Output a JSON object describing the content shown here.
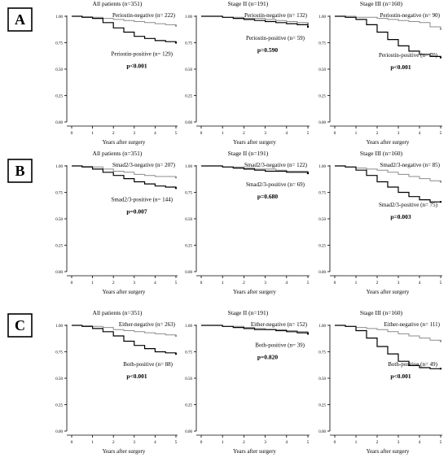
{
  "figure": {
    "rows": [
      {
        "label": "A",
        "panels": [
          {
            "title": "All patients (n=351)",
            "xlabel": "Years after surgery",
            "pvalue": "p<0.001",
            "upper_label": "Periostin-negative (n= 222)",
            "lower_label": "Periostin-positive (n= 129)"
          },
          {
            "title": "Stage II (n=191)",
            "xlabel": "Years after surgery",
            "pvalue": "p=0.590",
            "upper_label": "Periostin-negative (n= 132)",
            "lower_label": "Periostin-positive (n= 59)"
          },
          {
            "title": "Stage III (n=160)",
            "xlabel": "Years after surgery",
            "pvalue": "p<0.001",
            "upper_label": "Periostin-negative (n= 90)",
            "lower_label": "Periostin-positive (n= 70)"
          }
        ]
      },
      {
        "label": "B",
        "panels": [
          {
            "title": "All patients (n=351)",
            "xlabel": "Years after surgery",
            "pvalue": "p=0.007",
            "upper_label": "Smad2/3-negative (n= 207)",
            "lower_label": "Smad2/3-positive (n= 144)"
          },
          {
            "title": "Stage II (n=191)",
            "xlabel": "Years after surgery",
            "pvalue": "p=0.680",
            "upper_label": "Smad2/3-negative (n= 122)",
            "lower_label": "Smad2/3-positive (n= 69)"
          },
          {
            "title": "Stage III (n=160)",
            "xlabel": "Years after surgery",
            "pvalue": "p=0.003",
            "upper_label": "Smad2/3-negative (n= 85)",
            "lower_label": "Smad2/3-positive (n= 75)"
          }
        ]
      },
      {
        "label": "C",
        "panels": [
          {
            "title": "All patients (n=351)",
            "xlabel": "Years after surgery",
            "pvalue": "p<0.001",
            "upper_label": "Either-negative (n= 263)",
            "lower_label": "Both-positive (n= 88)"
          },
          {
            "title": "Stage II (n=191)",
            "xlabel": "Years after surgery",
            "pvalue": "p=0.820",
            "upper_label": "Either-negative (n= 152)",
            "lower_label": "Both-positive (n= 39)"
          },
          {
            "title": "Stage III (n=160)",
            "xlabel": "Years after surgery",
            "pvalue": "p<0.001",
            "upper_label": "Either-negative (n= 111)",
            "lower_label": "Both-positive (n= 49)"
          }
        ]
      }
    ]
  },
  "chart_data": [
    {
      "type": "line",
      "title": "All patients (n=351)",
      "xlabel": "Years after surgery",
      "xlim": [
        0,
        5
      ],
      "ylim": [
        0,
        1
      ],
      "xticks": [
        "0",
        "1",
        "2",
        "3",
        "4",
        "5"
      ],
      "yticks": [
        "0.00",
        "0.25",
        "0.50",
        "0.75",
        "1.00"
      ],
      "pvalue": "p<0.001",
      "series": [
        {
          "name": "Periostin-negative (n= 222)",
          "color": "#8c8c8c",
          "x": [
            0,
            0.5,
            1,
            1.5,
            2,
            2.5,
            3,
            3.5,
            4,
            4.5,
            5
          ],
          "y": [
            1,
            0.995,
            0.99,
            0.98,
            0.97,
            0.96,
            0.95,
            0.94,
            0.93,
            0.92,
            0.91
          ]
        },
        {
          "name": "Periostin-positive (n= 129)",
          "color": "#000000",
          "x": [
            0,
            0.5,
            1,
            1.5,
            2,
            2.5,
            3,
            3.5,
            4,
            4.5,
            5
          ],
          "y": [
            1,
            0.99,
            0.98,
            0.94,
            0.89,
            0.85,
            0.81,
            0.79,
            0.77,
            0.76,
            0.75
          ]
        }
      ]
    },
    {
      "type": "line",
      "title": "Stage II (n=191)",
      "xlabel": "Years after surgery",
      "xlim": [
        0,
        5
      ],
      "ylim": [
        0,
        1
      ],
      "xticks": [
        "0",
        "1",
        "2",
        "3",
        "4",
        "5"
      ],
      "yticks": [
        "0.00",
        "0.25",
        "0.50",
        "0.75",
        "1.00"
      ],
      "pvalue": "p=0.590",
      "series": [
        {
          "name": "Periostin-negative (n= 132)",
          "color": "#8c8c8c",
          "x": [
            0,
            0.5,
            1,
            1.5,
            2,
            2.5,
            3,
            3.5,
            4,
            4.5,
            5
          ],
          "y": [
            1,
            1,
            0.99,
            0.99,
            0.98,
            0.98,
            0.97,
            0.96,
            0.95,
            0.94,
            0.93
          ]
        },
        {
          "name": "Periostin-positive (n= 59)",
          "color": "#000000",
          "x": [
            0,
            0.5,
            1,
            1.5,
            2,
            2.5,
            3,
            3.5,
            4,
            4.5,
            5
          ],
          "y": [
            1,
            1,
            0.99,
            0.98,
            0.97,
            0.96,
            0.95,
            0.94,
            0.93,
            0.92,
            0.9
          ]
        }
      ]
    },
    {
      "type": "line",
      "title": "Stage III (n=160)",
      "xlabel": "Years after surgery",
      "xlim": [
        0,
        5
      ],
      "ylim": [
        0,
        1
      ],
      "xticks": [
        "0",
        "1",
        "2",
        "3",
        "4",
        "5"
      ],
      "yticks": [
        "0.00",
        "0.25",
        "0.50",
        "0.75",
        "1.00"
      ],
      "pvalue": "p<0.001",
      "series": [
        {
          "name": "Periostin-negative (n= 90)",
          "color": "#8c8c8c",
          "x": [
            0,
            0.5,
            1,
            1.5,
            2,
            2.5,
            3,
            3.5,
            4,
            4.5,
            5
          ],
          "y": [
            1,
            1,
            0.99,
            0.99,
            0.98,
            0.97,
            0.96,
            0.95,
            0.94,
            0.9,
            0.88
          ]
        },
        {
          "name": "Periostin-positive (n= 70)",
          "color": "#000000",
          "x": [
            0,
            0.5,
            1,
            1.5,
            2,
            2.5,
            3,
            3.5,
            4,
            4.5,
            5
          ],
          "y": [
            1,
            0.99,
            0.97,
            0.92,
            0.85,
            0.78,
            0.72,
            0.67,
            0.64,
            0.62,
            0.61
          ]
        }
      ]
    },
    {
      "type": "line",
      "title": "All patients (n=351)",
      "xlabel": "Years after surgery",
      "xlim": [
        0,
        5
      ],
      "ylim": [
        0,
        1
      ],
      "xticks": [
        "0",
        "1",
        "2",
        "3",
        "4",
        "5"
      ],
      "yticks": [
        "0.00",
        "0.25",
        "0.50",
        "0.75",
        "1.00"
      ],
      "pvalue": "p=0.007",
      "series": [
        {
          "name": "Smad2/3-negative (n= 207)",
          "color": "#8c8c8c",
          "x": [
            0,
            0.5,
            1,
            1.5,
            2,
            2.5,
            3,
            3.5,
            4,
            4.5,
            5
          ],
          "y": [
            1,
            0.995,
            0.99,
            0.97,
            0.95,
            0.94,
            0.92,
            0.91,
            0.9,
            0.9,
            0.89
          ]
        },
        {
          "name": "Smad2/3-positive (n= 144)",
          "color": "#000000",
          "x": [
            0,
            0.5,
            1,
            1.5,
            2,
            2.5,
            3,
            3.5,
            4,
            4.5,
            5
          ],
          "y": [
            1,
            0.99,
            0.97,
            0.94,
            0.91,
            0.88,
            0.85,
            0.83,
            0.81,
            0.8,
            0.79
          ]
        }
      ]
    },
    {
      "type": "line",
      "title": "Stage II (n=191)",
      "xlabel": "Years after surgery",
      "xlim": [
        0,
        5
      ],
      "ylim": [
        0,
        1
      ],
      "xticks": [
        "0",
        "1",
        "2",
        "3",
        "4",
        "5"
      ],
      "yticks": [
        "0.00",
        "0.25",
        "0.50",
        "0.75",
        "1.00"
      ],
      "pvalue": "p=0.680",
      "series": [
        {
          "name": "Smad2/3-negative (n= 122)",
          "color": "#8c8c8c",
          "x": [
            0,
            0.5,
            1,
            1.5,
            2,
            2.5,
            3,
            3.5,
            4,
            4.5,
            5
          ],
          "y": [
            1,
            1,
            0.99,
            0.99,
            0.98,
            0.97,
            0.97,
            0.96,
            0.95,
            0.95,
            0.94
          ]
        },
        {
          "name": "Smad2/3-positive (n= 69)",
          "color": "#000000",
          "x": [
            0,
            0.5,
            1,
            1.5,
            2,
            2.5,
            3,
            3.5,
            4,
            4.5,
            5
          ],
          "y": [
            1,
            1,
            0.99,
            0.98,
            0.97,
            0.96,
            0.95,
            0.95,
            0.94,
            0.94,
            0.93
          ]
        }
      ]
    },
    {
      "type": "line",
      "title": "Stage III (n=160)",
      "xlabel": "Years after surgery",
      "xlim": [
        0,
        5
      ],
      "ylim": [
        0,
        1
      ],
      "xticks": [
        "0",
        "1",
        "2",
        "3",
        "4",
        "5"
      ],
      "yticks": [
        "0.00",
        "0.25",
        "0.50",
        "0.75",
        "1.00"
      ],
      "pvalue": "p=0.003",
      "series": [
        {
          "name": "Smad2/3-negative (n= 85)",
          "color": "#8c8c8c",
          "x": [
            0,
            0.5,
            1,
            1.5,
            2,
            2.5,
            3,
            3.5,
            4,
            4.5,
            5
          ],
          "y": [
            1,
            0.99,
            0.98,
            0.97,
            0.96,
            0.94,
            0.92,
            0.9,
            0.88,
            0.86,
            0.85
          ]
        },
        {
          "name": "Smad2/3-positive (n= 75)",
          "color": "#000000",
          "x": [
            0,
            0.5,
            1,
            1.5,
            2,
            2.5,
            3,
            3.5,
            4,
            4.5,
            5
          ],
          "y": [
            1,
            0.99,
            0.96,
            0.91,
            0.85,
            0.8,
            0.75,
            0.71,
            0.68,
            0.66,
            0.66
          ]
        }
      ]
    },
    {
      "type": "line",
      "title": "All patients (n=351)",
      "xlabel": "Years after surgery",
      "xlim": [
        0,
        5
      ],
      "ylim": [
        0,
        1
      ],
      "xticks": [
        "0",
        "1",
        "2",
        "3",
        "4",
        "5"
      ],
      "yticks": [
        "0.00",
        "0.25",
        "0.50",
        "0.75",
        "1.00"
      ],
      "pvalue": "p<0.001",
      "series": [
        {
          "name": "Either-negative (n= 263)",
          "color": "#8c8c8c",
          "x": [
            0,
            0.5,
            1,
            1.5,
            2,
            2.5,
            3,
            3.5,
            4,
            4.5,
            5
          ],
          "y": [
            1,
            0.995,
            0.99,
            0.98,
            0.96,
            0.95,
            0.94,
            0.93,
            0.92,
            0.91,
            0.9
          ]
        },
        {
          "name": "Both-positive (n= 88)",
          "color": "#000000",
          "x": [
            0,
            0.5,
            1,
            1.5,
            2,
            2.5,
            3,
            3.5,
            4,
            4.5,
            5
          ],
          "y": [
            1,
            0.99,
            0.97,
            0.94,
            0.9,
            0.85,
            0.81,
            0.78,
            0.75,
            0.74,
            0.73
          ]
        }
      ]
    },
    {
      "type": "line",
      "title": "Stage II (n=191)",
      "xlabel": "Years after surgery",
      "xlim": [
        0,
        5
      ],
      "ylim": [
        0,
        1
      ],
      "xticks": [
        "0",
        "1",
        "2",
        "3",
        "4",
        "5"
      ],
      "yticks": [
        "0.00",
        "0.25",
        "0.50",
        "0.75",
        "1.00"
      ],
      "pvalue": "p=0.820",
      "series": [
        {
          "name": "Either-negative (n= 152)",
          "color": "#8c8c8c",
          "x": [
            0,
            0.5,
            1,
            1.5,
            2,
            2.5,
            3,
            3.5,
            4,
            4.5,
            5
          ],
          "y": [
            1,
            1,
            0.99,
            0.99,
            0.98,
            0.97,
            0.96,
            0.96,
            0.95,
            0.94,
            0.93
          ]
        },
        {
          "name": "Both-positive (n= 39)",
          "color": "#000000",
          "x": [
            0,
            0.5,
            1,
            1.5,
            2,
            2.5,
            3,
            3.5,
            4,
            4.5,
            5
          ],
          "y": [
            1,
            1,
            0.99,
            0.98,
            0.97,
            0.96,
            0.96,
            0.95,
            0.94,
            0.93,
            0.92
          ]
        }
      ]
    },
    {
      "type": "line",
      "title": "Stage III (n=160)",
      "xlabel": "Years after surgery",
      "xlim": [
        0,
        5
      ],
      "ylim": [
        0,
        1
      ],
      "xticks": [
        "0",
        "1",
        "2",
        "3",
        "4",
        "5"
      ],
      "yticks": [
        "0.00",
        "0.25",
        "0.50",
        "0.75",
        "1.00"
      ],
      "pvalue": "p<0.001",
      "series": [
        {
          "name": "Either-negative (n= 111)",
          "color": "#8c8c8c",
          "x": [
            0,
            0.5,
            1,
            1.5,
            2,
            2.5,
            3,
            3.5,
            4,
            4.5,
            5
          ],
          "y": [
            1,
            0.99,
            0.98,
            0.97,
            0.96,
            0.94,
            0.92,
            0.9,
            0.88,
            0.86,
            0.85
          ]
        },
        {
          "name": "Both-positive (n= 49)",
          "color": "#000000",
          "x": [
            0,
            0.5,
            1,
            1.5,
            2,
            2.5,
            3,
            3.5,
            4,
            4.5,
            5
          ],
          "y": [
            1,
            0.99,
            0.95,
            0.88,
            0.8,
            0.73,
            0.66,
            0.62,
            0.6,
            0.59,
            0.59
          ]
        }
      ]
    }
  ]
}
